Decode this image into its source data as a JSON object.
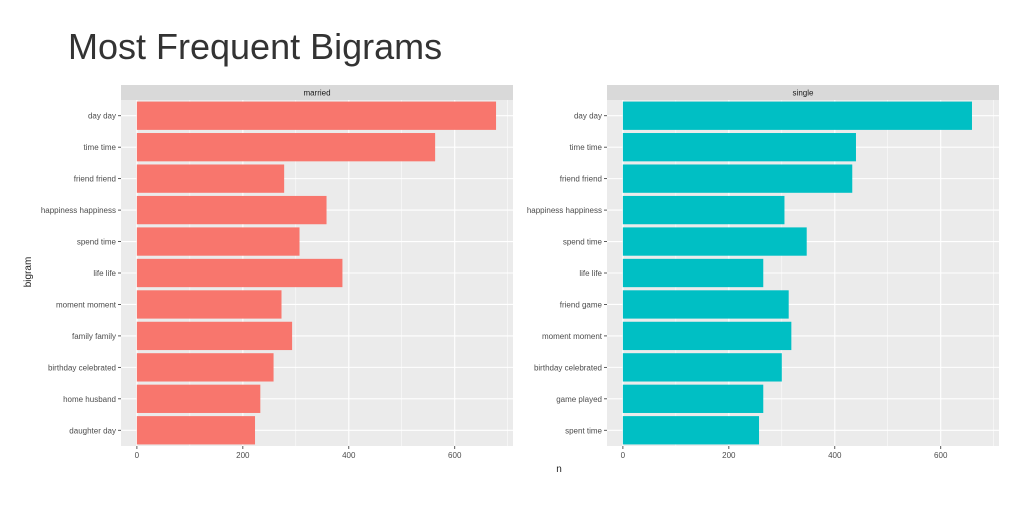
{
  "title": "Most Frequent Bigrams",
  "chart_data": {
    "type": "bar",
    "orientation": "horizontal",
    "xlabel": "n",
    "ylabel": "bigram",
    "xlim": [
      -30,
      710
    ],
    "xticks": [
      0,
      200,
      400,
      600
    ],
    "grid": true,
    "colors": {
      "married": "#F8766D",
      "single": "#00BFC4",
      "panel_bg": "#EBEBEB",
      "strip_bg": "#D9D9D9",
      "grid": "#FFFFFF"
    },
    "panels": [
      {
        "facet": "married",
        "categories": [
          "day day",
          "time time",
          "friend friend",
          "happiness happiness",
          "spend time",
          "life life",
          "moment moment",
          "family family",
          "birthday celebrated",
          "home husband",
          "daughter day"
        ],
        "values": [
          678,
          563,
          278,
          358,
          307,
          388,
          273,
          293,
          258,
          233,
          223
        ]
      },
      {
        "facet": "single",
        "categories": [
          "day day",
          "time time",
          "friend friend",
          "happiness happiness",
          "spend time",
          "life life",
          "friend game",
          "moment moment",
          "birthday celebrated",
          "game played",
          "spent time"
        ],
        "values": [
          659,
          440,
          433,
          305,
          347,
          265,
          313,
          318,
          300,
          265,
          257
        ]
      }
    ]
  }
}
